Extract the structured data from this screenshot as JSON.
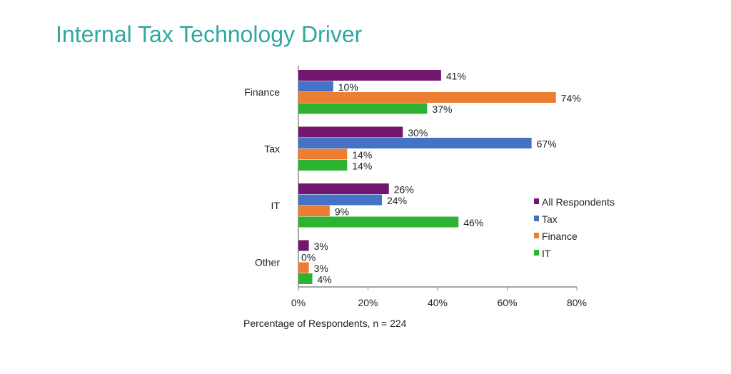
{
  "title": "Internal Tax Technology Driver",
  "chart_data": {
    "type": "bar",
    "orientation": "horizontal",
    "title": "Internal Tax Technology Driver",
    "xlabel": "Percentage of Respondents,  n = 224",
    "ylabel": "",
    "categories": [
      "Finance",
      "Tax",
      "IT",
      "Other"
    ],
    "series": [
      {
        "name": "All Respondents",
        "color": "#72166f",
        "values": [
          41,
          30,
          26,
          3
        ]
      },
      {
        "name": "Tax",
        "color": "#4472c4",
        "values": [
          10,
          67,
          24,
          0
        ]
      },
      {
        "name": "Finance",
        "color": "#ed7d31",
        "values": [
          74,
          14,
          9,
          3
        ]
      },
      {
        "name": "IT",
        "color": "#2db233",
        "values": [
          37,
          14,
          46,
          4
        ]
      }
    ],
    "xlim": [
      0,
      80
    ],
    "xticks": [
      "0%",
      "20%",
      "40%",
      "60%",
      "80%"
    ],
    "value_suffix": "%",
    "grid": false,
    "legend": "right"
  }
}
